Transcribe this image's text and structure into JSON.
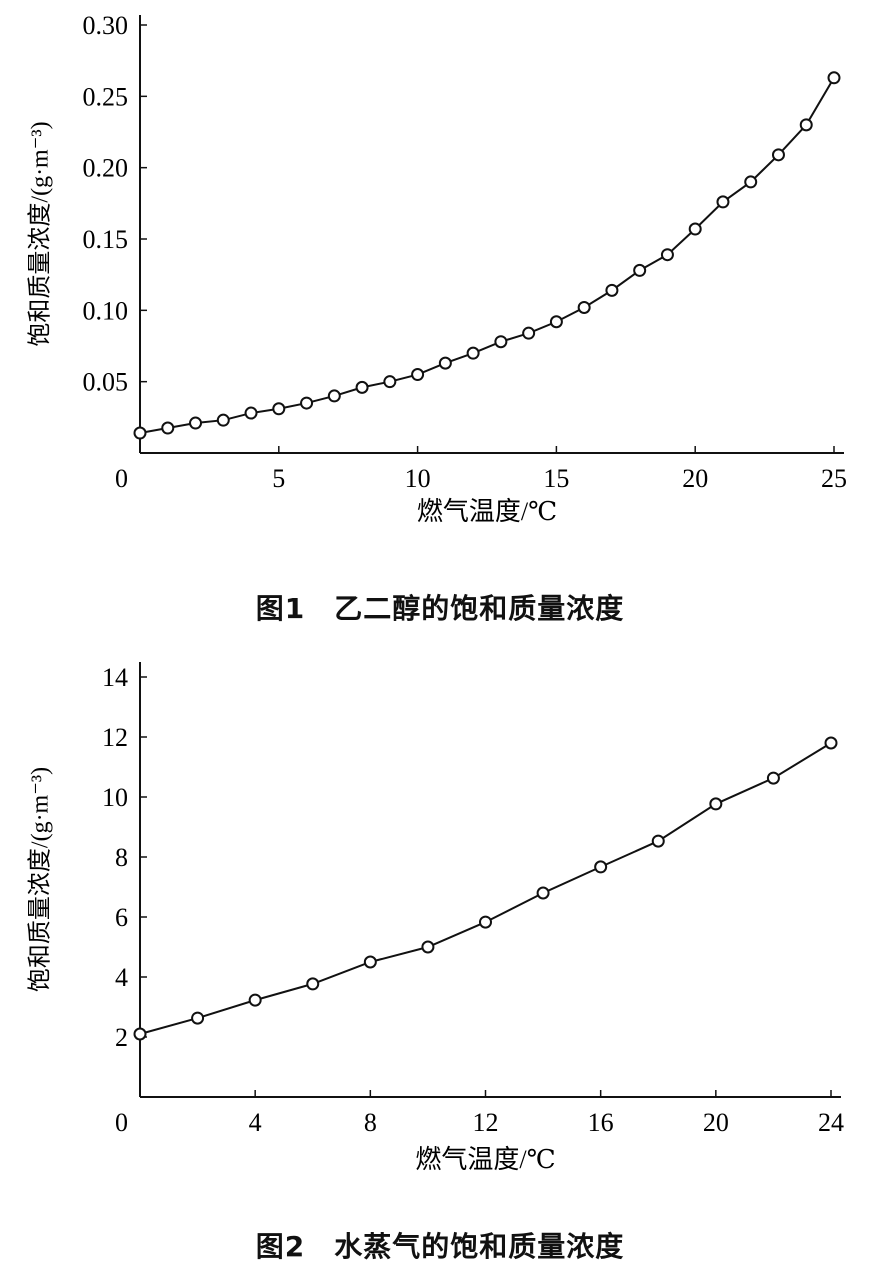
{
  "chart_data": [
    {
      "type": "line",
      "title": "图1　乙二醇的饱和质量浓度",
      "xlabel": "燃气温度/℃",
      "ylabel": "饱和质量浓度/(g·m⁻³)",
      "xlim": [
        0,
        25
      ],
      "ylim": [
        0,
        0.3
      ],
      "xticks": [
        "0",
        "5",
        "10",
        "15",
        "20",
        "25"
      ],
      "yticks": [
        "0.05",
        "0.10",
        "0.15",
        "0.20",
        "0.25",
        "0.30"
      ],
      "grid": false,
      "marker": "open-circle",
      "x": [
        0,
        1,
        2,
        3,
        4,
        5,
        6,
        7,
        8,
        9,
        10,
        11,
        12,
        13,
        14,
        15,
        16,
        17,
        18,
        19,
        20,
        21,
        22,
        23,
        24,
        25
      ],
      "y": [
        0.014,
        0.0175,
        0.021,
        0.023,
        0.028,
        0.031,
        0.035,
        0.04,
        0.046,
        0.05,
        0.055,
        0.063,
        0.07,
        0.078,
        0.084,
        0.092,
        0.102,
        0.114,
        0.128,
        0.139,
        0.157,
        0.176,
        0.19,
        0.209,
        0.23,
        0.263
      ]
    },
    {
      "type": "line",
      "title": "图2　水蒸气的饱和质量浓度",
      "xlabel": "燃气温度/℃",
      "ylabel": "饱和质量浓度/(g·m⁻³)",
      "xlim": [
        0,
        24
      ],
      "ylim": [
        0,
        14
      ],
      "xticks": [
        "0",
        "4",
        "8",
        "12",
        "16",
        "20",
        "24"
      ],
      "yticks": [
        "2",
        "4",
        "6",
        "8",
        "10",
        "12",
        "14"
      ],
      "grid": false,
      "marker": "open-circle",
      "x": [
        0,
        2,
        4,
        6,
        8,
        10,
        12,
        14,
        16,
        18,
        20,
        22,
        24
      ],
      "y": [
        2.1,
        2.63,
        3.23,
        3.77,
        4.5,
        5.0,
        5.83,
        6.8,
        7.67,
        8.53,
        9.77,
        10.63,
        11.8
      ]
    }
  ]
}
